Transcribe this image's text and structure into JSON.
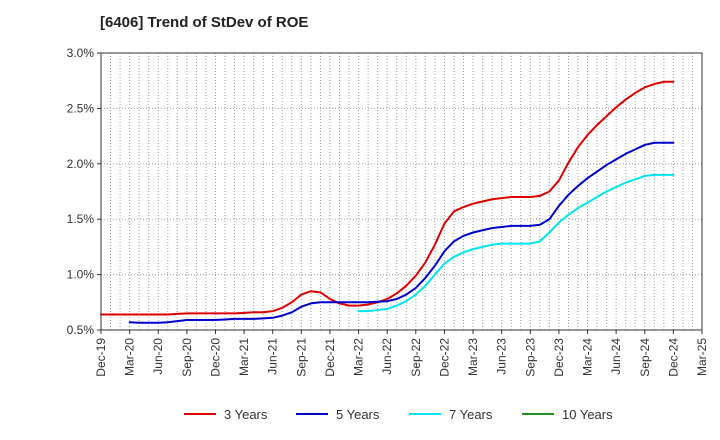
{
  "chart_data": {
    "type": "line",
    "title": "[6406]  Trend of StDev of ROE",
    "xlabel": "",
    "ylabel": "",
    "ylim": [
      0.5,
      3.0
    ],
    "yticks": [
      0.5,
      1.0,
      1.5,
      2.0,
      2.5,
      3.0
    ],
    "ytick_labels": [
      "0.5%",
      "1.0%",
      "1.5%",
      "2.0%",
      "2.5%",
      "3.0%"
    ],
    "x_start": "2019-12",
    "x_end": "2025-03",
    "x_tick_labels": [
      "Dec-19",
      "Mar-20",
      "Jun-20",
      "Sep-20",
      "Dec-20",
      "Mar-21",
      "Jun-21",
      "Sep-21",
      "Dec-21",
      "Mar-22",
      "Jun-22",
      "Sep-22",
      "Dec-22",
      "Mar-23",
      "Jun-23",
      "Sep-23",
      "Dec-23",
      "Mar-24",
      "Jun-24",
      "Sep-24",
      "Dec-24",
      "Mar-25"
    ],
    "grid": true,
    "legend_position": "bottom",
    "series": [
      {
        "name": "3 Years",
        "color": "#dd0000",
        "x": [
          "2019-12",
          "2020-01",
          "2020-02",
          "2020-03",
          "2020-04",
          "2020-05",
          "2020-06",
          "2020-07",
          "2020-08",
          "2020-09",
          "2020-10",
          "2020-11",
          "2020-12",
          "2021-01",
          "2021-02",
          "2021-03",
          "2021-04",
          "2021-05",
          "2021-06",
          "2021-07",
          "2021-08",
          "2021-09",
          "2021-10",
          "2021-11",
          "2021-12",
          "2022-01",
          "2022-02",
          "2022-03",
          "2022-04",
          "2022-05",
          "2022-06",
          "2022-07",
          "2022-08",
          "2022-09",
          "2022-10",
          "2022-11",
          "2022-12",
          "2023-01",
          "2023-02",
          "2023-03",
          "2023-04",
          "2023-05",
          "2023-06",
          "2023-07",
          "2023-08",
          "2023-09",
          "2023-10",
          "2023-11",
          "2023-12",
          "2024-01",
          "2024-02",
          "2024-03",
          "2024-04",
          "2024-05",
          "2024-06",
          "2024-07",
          "2024-08",
          "2024-09",
          "2024-10",
          "2024-11",
          "2024-12"
        ],
        "values": [
          0.64,
          0.64,
          0.64,
          0.64,
          0.64,
          0.64,
          0.64,
          0.64,
          0.645,
          0.65,
          0.65,
          0.65,
          0.65,
          0.65,
          0.65,
          0.655,
          0.66,
          0.66,
          0.67,
          0.7,
          0.75,
          0.82,
          0.85,
          0.84,
          0.78,
          0.74,
          0.72,
          0.72,
          0.73,
          0.75,
          0.78,
          0.83,
          0.9,
          0.99,
          1.11,
          1.27,
          1.46,
          1.57,
          1.61,
          1.64,
          1.66,
          1.68,
          1.69,
          1.7,
          1.7,
          1.7,
          1.71,
          1.75,
          1.85,
          2.01,
          2.15,
          2.26,
          2.35,
          2.43,
          2.51,
          2.58,
          2.64,
          2.69,
          2.72,
          2.74,
          2.74
        ]
      },
      {
        "name": "5 Years",
        "color": "#0000cc",
        "x": [
          "2020-03",
          "2020-04",
          "2020-05",
          "2020-06",
          "2020-07",
          "2020-08",
          "2020-09",
          "2020-10",
          "2020-11",
          "2020-12",
          "2021-01",
          "2021-02",
          "2021-03",
          "2021-04",
          "2021-05",
          "2021-06",
          "2021-07",
          "2021-08",
          "2021-09",
          "2021-10",
          "2021-11",
          "2021-12",
          "2022-01",
          "2022-02",
          "2022-03",
          "2022-04",
          "2022-05",
          "2022-06",
          "2022-07",
          "2022-08",
          "2022-09",
          "2022-10",
          "2022-11",
          "2022-12",
          "2023-01",
          "2023-02",
          "2023-03",
          "2023-04",
          "2023-05",
          "2023-06",
          "2023-07",
          "2023-08",
          "2023-09",
          "2023-10",
          "2023-11",
          "2023-12",
          "2024-01",
          "2024-02",
          "2024-03",
          "2024-04",
          "2024-05",
          "2024-06",
          "2024-07",
          "2024-08",
          "2024-09",
          "2024-10",
          "2024-11",
          "2024-12"
        ],
        "values": [
          0.57,
          0.565,
          0.565,
          0.565,
          0.57,
          0.58,
          0.59,
          0.59,
          0.59,
          0.59,
          0.595,
          0.6,
          0.6,
          0.6,
          0.605,
          0.61,
          0.63,
          0.66,
          0.71,
          0.74,
          0.75,
          0.75,
          0.75,
          0.75,
          0.75,
          0.75,
          0.755,
          0.76,
          0.78,
          0.82,
          0.88,
          0.97,
          1.08,
          1.21,
          1.3,
          1.35,
          1.38,
          1.4,
          1.42,
          1.43,
          1.44,
          1.44,
          1.44,
          1.45,
          1.5,
          1.62,
          1.72,
          1.8,
          1.87,
          1.93,
          1.99,
          2.04,
          2.09,
          2.13,
          2.17,
          2.19,
          2.19,
          2.19
        ]
      },
      {
        "name": "7 Years",
        "color": "#00e5ee",
        "x": [
          "2022-03",
          "2022-04",
          "2022-05",
          "2022-06",
          "2022-07",
          "2022-08",
          "2022-09",
          "2022-10",
          "2022-11",
          "2022-12",
          "2023-01",
          "2023-02",
          "2023-03",
          "2023-04",
          "2023-05",
          "2023-06",
          "2023-07",
          "2023-08",
          "2023-09",
          "2023-10",
          "2023-11",
          "2023-12",
          "2024-01",
          "2024-02",
          "2024-03",
          "2024-04",
          "2024-05",
          "2024-06",
          "2024-07",
          "2024-08",
          "2024-09",
          "2024-10",
          "2024-11",
          "2024-12"
        ],
        "values": [
          0.67,
          0.67,
          0.68,
          0.69,
          0.72,
          0.76,
          0.82,
          0.9,
          1.0,
          1.1,
          1.16,
          1.2,
          1.23,
          1.25,
          1.27,
          1.28,
          1.28,
          1.28,
          1.28,
          1.3,
          1.38,
          1.47,
          1.54,
          1.6,
          1.65,
          1.7,
          1.75,
          1.79,
          1.83,
          1.86,
          1.89,
          1.9,
          1.9,
          1.9
        ]
      },
      {
        "name": "10 Years",
        "color": "#228b22",
        "x": [],
        "values": []
      }
    ]
  }
}
